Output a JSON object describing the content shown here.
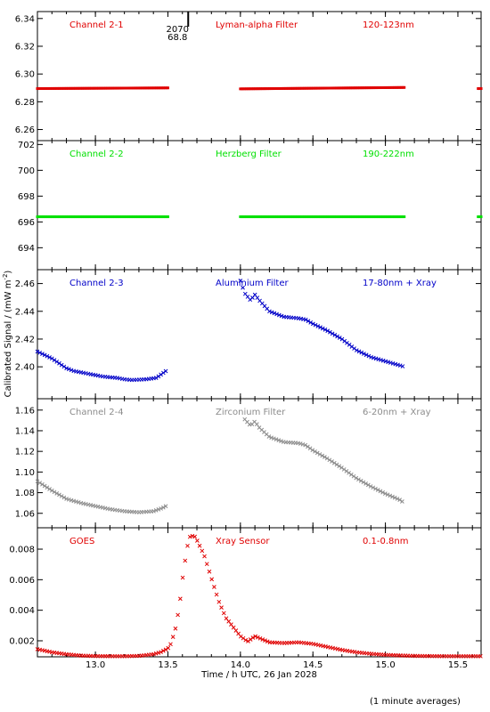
{
  "y_axis_label": "Calibrated Signal / (mW m",
  "y_axis_label_sup": "-2",
  "y_axis_label_end": ")",
  "x_axis_label": "Time / h UTC, 26 Jan 2028",
  "footnote": "(1 minute averages)",
  "colors": {
    "red": "#e00000",
    "green": "#00e000",
    "blue": "#0000c8",
    "gray": "#8c8c8c",
    "axis": "#000000"
  },
  "chart_data": [
    {
      "type": "scatter",
      "channel": "Channel 2-1",
      "filter": "Lyman-alpha Filter",
      "band": "120-123nm",
      "color": "#e00000",
      "marker": "dot",
      "ylim": [
        6.252,
        6.345
      ],
      "yticks": [
        6.26,
        6.28,
        6.3,
        6.32,
        6.34
      ],
      "ytick_labels": [
        "6.26",
        "6.28",
        "6.30",
        "6.32",
        "6.34"
      ],
      "segments": [
        {
          "x": [
            12.6,
            13.5
          ],
          "y": [
            6.2895,
            6.29
          ]
        },
        {
          "x": [
            14.0,
            15.13
          ],
          "y": [
            6.2893,
            6.2903
          ]
        },
        {
          "x": [
            15.64,
            15.66
          ],
          "y": [
            6.2895,
            6.2895
          ]
        }
      ],
      "marker_annotation": {
        "x": 13.64,
        "line1": "2070",
        "line2": "68.8"
      }
    },
    {
      "type": "scatter",
      "channel": "Channel 2-2",
      "filter": "Herzberg Filter",
      "band": "190-222nm",
      "color": "#00e000",
      "marker": "dot",
      "ylim": [
        692.3,
        702.3
      ],
      "yticks": [
        694,
        696,
        698,
        700,
        702
      ],
      "ytick_labels": [
        "694",
        "696",
        "698",
        "700",
        "702"
      ],
      "segments": [
        {
          "x": [
            12.6,
            13.5
          ],
          "y": [
            696.4,
            696.4
          ]
        },
        {
          "x": [
            14.0,
            15.13
          ],
          "y": [
            696.4,
            696.4
          ]
        },
        {
          "x": [
            15.64,
            15.66
          ],
          "y": [
            696.4,
            696.4
          ]
        }
      ]
    },
    {
      "type": "scatter",
      "channel": "Channel 2-3",
      "filter": "Aluminium Filter",
      "band": "17-80nm + Xray",
      "color": "#0000c8",
      "marker": "x",
      "ylim": [
        2.377,
        2.47
      ],
      "yticks": [
        2.4,
        2.42,
        2.44,
        2.46
      ],
      "ytick_labels": [
        "2.40",
        "2.42",
        "2.44",
        "2.46"
      ],
      "x": [
        12.6,
        12.7,
        12.8,
        12.85,
        12.95,
        13.05,
        13.15,
        13.2,
        13.25,
        13.35,
        13.42,
        13.46,
        13.5,
        14.0,
        14.03,
        14.07,
        14.1,
        14.13,
        14.2,
        14.3,
        14.4,
        14.45,
        14.5,
        14.6,
        14.7,
        14.8,
        14.9,
        15.0,
        15.1,
        15.13
      ],
      "y": [
        2.411,
        2.406,
        2.399,
        2.397,
        2.395,
        2.393,
        2.392,
        2.391,
        2.3905,
        2.391,
        2.392,
        2.395,
        2.398,
        2.462,
        2.453,
        2.448,
        2.452,
        2.448,
        2.44,
        2.436,
        2.435,
        2.434,
        2.431,
        2.426,
        2.42,
        2.412,
        2.407,
        2.404,
        2.401,
        2.4
      ]
    },
    {
      "type": "scatter",
      "channel": "Channel 2-4",
      "filter": "Zirconium Filter",
      "band": "6-20nm + Xray",
      "color": "#8c8c8c",
      "marker": "x",
      "ylim": [
        1.046,
        1.171
      ],
      "yticks": [
        1.06,
        1.08,
        1.1,
        1.12,
        1.14,
        1.16
      ],
      "ytick_labels": [
        "1.06",
        "1.08",
        "1.10",
        "1.12",
        "1.14",
        "1.16"
      ],
      "x": [
        12.6,
        12.7,
        12.8,
        12.9,
        13.0,
        13.1,
        13.2,
        13.3,
        13.4,
        13.46,
        13.5,
        14.03,
        14.07,
        14.1,
        14.13,
        14.2,
        14.3,
        14.4,
        14.45,
        14.5,
        14.6,
        14.7,
        14.8,
        14.9,
        15.0,
        15.1,
        15.13
      ],
      "y": [
        1.091,
        1.082,
        1.074,
        1.07,
        1.067,
        1.064,
        1.062,
        1.061,
        1.062,
        1.065,
        1.068,
        1.151,
        1.145,
        1.149,
        1.143,
        1.134,
        1.129,
        1.128,
        1.126,
        1.121,
        1.113,
        1.104,
        1.094,
        1.086,
        1.079,
        1.073,
        1.07
      ]
    },
    {
      "type": "scatter",
      "channel": "GOES",
      "filter": "Xray Sensor",
      "band": "0.1-0.8nm",
      "color": "#e00000",
      "marker": "x",
      "ylim": [
        0.00095,
        0.0094
      ],
      "yticks": [
        0.002,
        0.004,
        0.006,
        0.008
      ],
      "ytick_labels": [
        "0.002",
        "0.004",
        "0.006",
        "0.008"
      ],
      "xlim": [
        12.6,
        15.66
      ],
      "xticks": [
        13.0,
        13.5,
        14.0,
        14.5,
        15.0,
        15.5
      ],
      "xtick_labels": [
        "13.0",
        "13.5",
        "14.0",
        "14.5",
        "15.0",
        "15.5"
      ],
      "x": [
        12.6,
        12.7,
        12.8,
        12.9,
        13.0,
        13.1,
        13.2,
        13.3,
        13.4,
        13.45,
        13.5,
        13.52,
        13.55,
        13.58,
        13.6,
        13.63,
        13.65,
        13.68,
        13.7,
        13.75,
        13.8,
        13.85,
        13.9,
        14.0,
        14.05,
        14.1,
        14.15,
        14.2,
        14.3,
        14.4,
        14.5,
        14.6,
        14.7,
        14.8,
        14.9,
        15.0,
        15.1,
        15.2,
        15.3,
        15.4,
        15.5,
        15.6,
        15.66
      ],
      "y": [
        0.00145,
        0.00125,
        0.00112,
        0.00103,
        0.001,
        0.00099,
        0.00099,
        0.00101,
        0.00112,
        0.00125,
        0.0015,
        0.0018,
        0.0027,
        0.0043,
        0.006,
        0.008,
        0.0088,
        0.0089,
        0.0086,
        0.0076,
        0.0061,
        0.0046,
        0.0035,
        0.0023,
        0.00195,
        0.0023,
        0.0021,
        0.0019,
        0.00185,
        0.0019,
        0.0018,
        0.0016,
        0.0014,
        0.00125,
        0.00115,
        0.00108,
        0.00104,
        0.00101,
        0.001,
        0.00099,
        0.00099,
        0.00099,
        0.00099
      ]
    }
  ]
}
